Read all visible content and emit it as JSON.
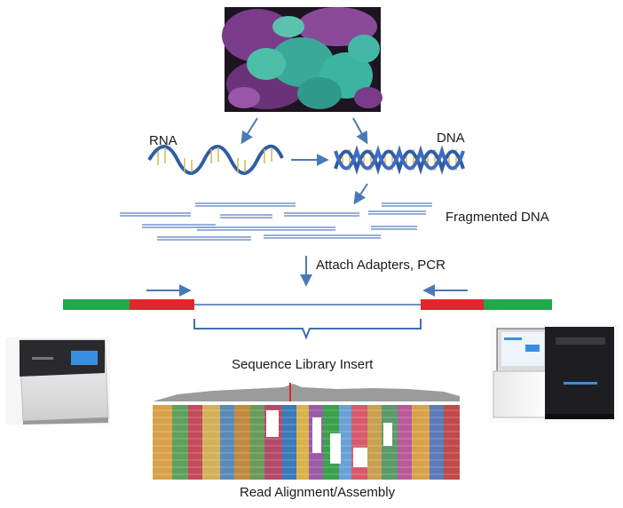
{
  "labels": {
    "rna": "RNA",
    "dna": "DNA",
    "fragmented": "Fragmented DNA",
    "adapters": "Attach Adapters, PCR",
    "insert": "Sequence Library Insert",
    "assembly": "Read Alignment/Assembly"
  },
  "colors": {
    "arrow": "#4a7ab5",
    "fragment_line": "#5b7fc0",
    "adapter_green": "#22a84a",
    "adapter_red": "#e3262b",
    "insert_line": "#3e6fb0"
  },
  "icons": {
    "micrograph": "cell-micrograph-image",
    "rna_strand": "rna-helix-icon",
    "dna_strand": "dna-double-helix-icon",
    "sequencer_left": "benchtop-sequencer-icon",
    "sequencer_right": "hiseq-sequencer-icon",
    "alignment": "read-alignment-view"
  }
}
